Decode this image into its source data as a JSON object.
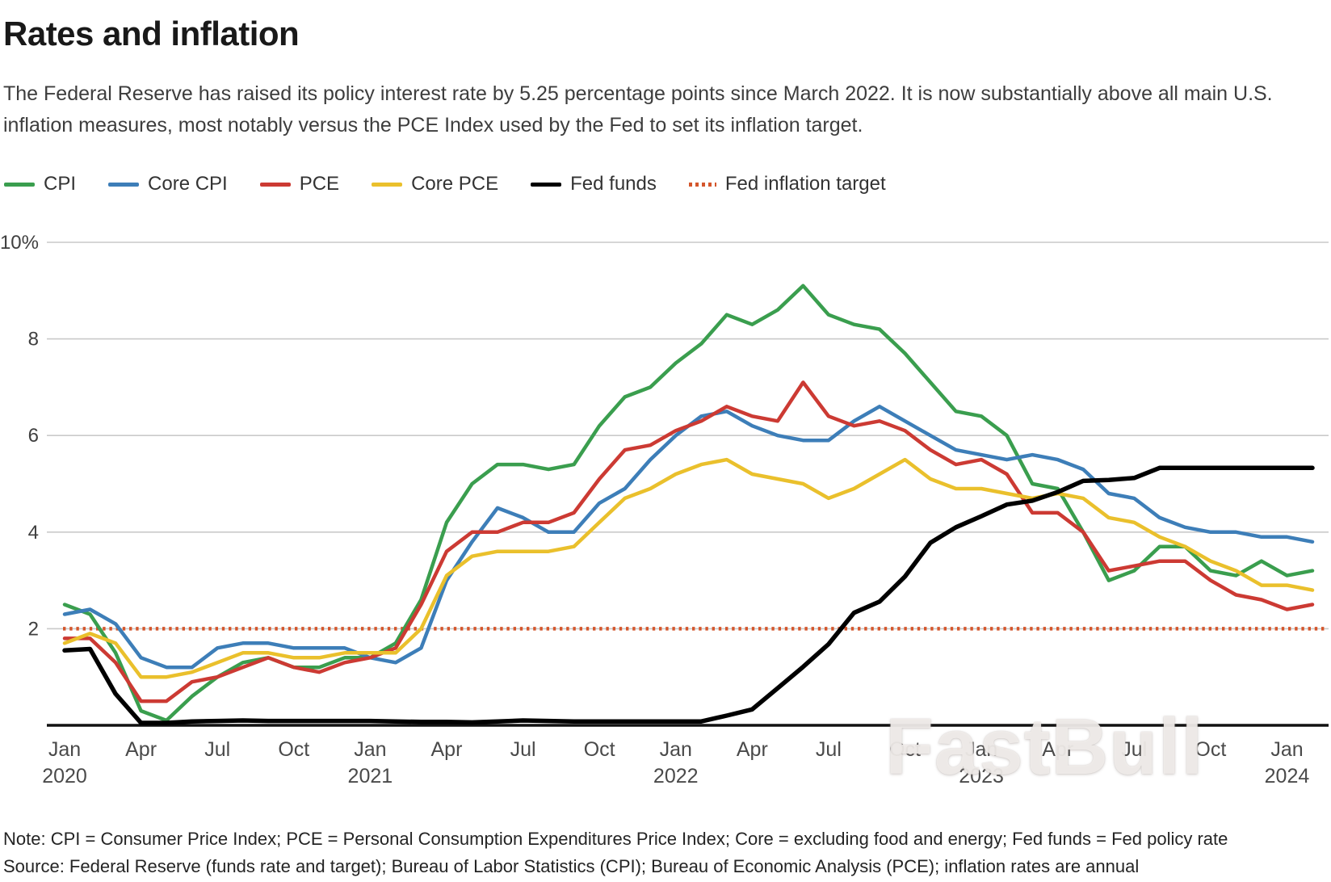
{
  "header": {
    "title": "Rates and inflation",
    "subtitle": "The Federal Reserve has raised its policy interest rate by 5.25 percentage points since March 2022. It is now substantially above all main U.S. inflation measures, most notably versus the PCE Index used by the Fed to set its inflation target."
  },
  "legend": {
    "items": [
      {
        "label": "CPI",
        "color": "#3a9e4e",
        "style": "solid"
      },
      {
        "label": "Core CPI",
        "color": "#3d7eb8",
        "style": "solid"
      },
      {
        "label": "PCE",
        "color": "#cc3a33",
        "style": "solid"
      },
      {
        "label": "Core PCE",
        "color": "#eac02c",
        "style": "solid"
      },
      {
        "label": "Fed funds",
        "color": "#000000",
        "style": "solid"
      },
      {
        "label": "Fed inflation target",
        "color": "#d4562c",
        "style": "dotted"
      }
    ]
  },
  "chart_data": {
    "type": "line",
    "title": "Rates and inflation",
    "x_start": "2020-01",
    "x_end": "2024-02",
    "x_frequency": "monthly",
    "ylim": [
      0,
      10
    ],
    "grid": true,
    "legend_position": "top",
    "y_ticks": [
      {
        "value": 10,
        "label": "10%"
      },
      {
        "value": 8,
        "label": "8"
      },
      {
        "value": 6,
        "label": "6"
      },
      {
        "value": 4,
        "label": "4"
      },
      {
        "value": 2,
        "label": "2"
      }
    ],
    "x_ticks": [
      {
        "index": 0,
        "month": "Jan",
        "year": "2020"
      },
      {
        "index": 3,
        "month": "Apr",
        "year": ""
      },
      {
        "index": 6,
        "month": "Jul",
        "year": ""
      },
      {
        "index": 9,
        "month": "Oct",
        "year": ""
      },
      {
        "index": 12,
        "month": "Jan",
        "year": "2021"
      },
      {
        "index": 15,
        "month": "Apr",
        "year": ""
      },
      {
        "index": 18,
        "month": "Jul",
        "year": ""
      },
      {
        "index": 21,
        "month": "Oct",
        "year": ""
      },
      {
        "index": 24,
        "month": "Jan",
        "year": "2022"
      },
      {
        "index": 27,
        "month": "Apr",
        "year": ""
      },
      {
        "index": 30,
        "month": "Jul",
        "year": ""
      },
      {
        "index": 33,
        "month": "Oct",
        "year": ""
      },
      {
        "index": 36,
        "month": "Jan",
        "year": "2023"
      },
      {
        "index": 39,
        "month": "Apr",
        "year": ""
      },
      {
        "index": 42,
        "month": "Jul",
        "year": ""
      },
      {
        "index": 45,
        "month": "Oct",
        "year": ""
      },
      {
        "index": 48,
        "month": "Jan",
        "year": "2024"
      }
    ],
    "target_line": {
      "label": "Fed inflation target",
      "value": 2.0,
      "color": "#d4562c",
      "style": "dotted"
    },
    "series": [
      {
        "name": "CPI",
        "color": "#3a9e4e",
        "width": 4.5,
        "values": [
          2.5,
          2.3,
          1.5,
          0.3,
          0.1,
          0.6,
          1.0,
          1.3,
          1.4,
          1.2,
          1.2,
          1.4,
          1.4,
          1.7,
          2.6,
          4.2,
          5.0,
          5.4,
          5.4,
          5.3,
          5.4,
          6.2,
          6.8,
          7.0,
          7.5,
          7.9,
          8.5,
          8.3,
          8.6,
          9.1,
          8.5,
          8.3,
          8.2,
          7.7,
          7.1,
          6.5,
          6.4,
          6.0,
          5.0,
          4.9,
          4.0,
          3.0,
          3.2,
          3.7,
          3.7,
          3.2,
          3.1,
          3.4,
          3.1,
          3.2
        ]
      },
      {
        "name": "Core CPI",
        "color": "#3d7eb8",
        "width": 4.5,
        "values": [
          2.3,
          2.4,
          2.1,
          1.4,
          1.2,
          1.2,
          1.6,
          1.7,
          1.7,
          1.6,
          1.6,
          1.6,
          1.4,
          1.3,
          1.6,
          3.0,
          3.8,
          4.5,
          4.3,
          4.0,
          4.0,
          4.6,
          4.9,
          5.5,
          6.0,
          6.4,
          6.5,
          6.2,
          6.0,
          5.9,
          5.9,
          6.3,
          6.6,
          6.3,
          6.0,
          5.7,
          5.6,
          5.5,
          5.6,
          5.5,
          5.3,
          4.8,
          4.7,
          4.3,
          4.1,
          4.0,
          4.0,
          3.9,
          3.9,
          3.8
        ]
      },
      {
        "name": "PCE",
        "color": "#cc3a33",
        "width": 4.5,
        "values": [
          1.8,
          1.8,
          1.3,
          0.5,
          0.5,
          0.9,
          1.0,
          1.2,
          1.4,
          1.2,
          1.1,
          1.3,
          1.4,
          1.6,
          2.5,
          3.6,
          4.0,
          4.0,
          4.2,
          4.2,
          4.4,
          5.1,
          5.7,
          5.8,
          6.1,
          6.3,
          6.6,
          6.4,
          6.3,
          7.1,
          6.4,
          6.2,
          6.3,
          6.1,
          5.7,
          5.4,
          5.5,
          5.2,
          4.4,
          4.4,
          4.0,
          3.2,
          3.3,
          3.4,
          3.4,
          3.0,
          2.7,
          2.6,
          2.4,
          2.5
        ]
      },
      {
        "name": "Core PCE",
        "color": "#eac02c",
        "width": 4.5,
        "values": [
          1.7,
          1.9,
          1.7,
          1.0,
          1.0,
          1.1,
          1.3,
          1.5,
          1.5,
          1.4,
          1.4,
          1.5,
          1.5,
          1.5,
          2.0,
          3.1,
          3.5,
          3.6,
          3.6,
          3.6,
          3.7,
          4.2,
          4.7,
          4.9,
          5.2,
          5.4,
          5.5,
          5.2,
          5.1,
          5.0,
          4.7,
          4.9,
          5.2,
          5.5,
          5.1,
          4.9,
          4.9,
          4.8,
          4.7,
          4.8,
          4.7,
          4.3,
          4.2,
          3.9,
          3.7,
          3.4,
          3.2,
          2.9,
          2.9,
          2.8
        ]
      },
      {
        "name": "Fed funds",
        "color": "#000000",
        "width": 5.5,
        "values": [
          1.55,
          1.58,
          0.65,
          0.05,
          0.05,
          0.08,
          0.09,
          0.1,
          0.09,
          0.09,
          0.09,
          0.09,
          0.09,
          0.08,
          0.07,
          0.07,
          0.06,
          0.08,
          0.1,
          0.09,
          0.08,
          0.08,
          0.08,
          0.08,
          0.08,
          0.08,
          0.2,
          0.33,
          0.77,
          1.21,
          1.68,
          2.33,
          2.56,
          3.08,
          3.78,
          4.1,
          4.33,
          4.57,
          4.65,
          4.83,
          5.06,
          5.08,
          5.12,
          5.33,
          5.33,
          5.33,
          5.33,
          5.33,
          5.33,
          5.33
        ]
      }
    ]
  },
  "watermark": "FastBull",
  "footer": {
    "note": "Note: CPI = Consumer Price Index; PCE = Personal Consumption Expenditures Price Index; Core = excluding food and energy; Fed funds = Fed policy rate",
    "source": "Source: Federal Reserve (funds rate and target); Bureau of Labor Statistics (CPI); Bureau of Economic Analysis (PCE); inflation rates are annual"
  }
}
